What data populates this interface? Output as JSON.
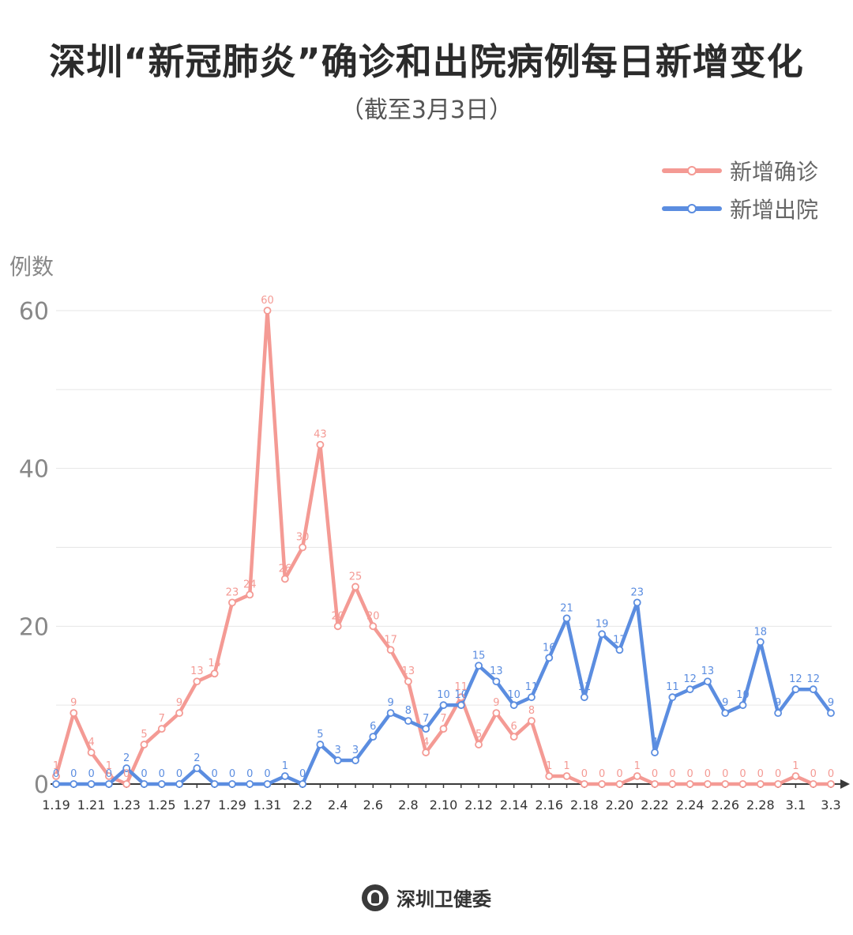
{
  "title": "深圳“新冠肺炎”确诊和出院病例每日新增变化",
  "subtitle": "（截至3月3日）",
  "footer": "深圳卫健委",
  "colors": {
    "confirmed": "#F49A94",
    "discharged": "#5B8DE0",
    "grid": "#e6e6e6",
    "axis": "#3a3a3a"
  },
  "chart_data": {
    "type": "line",
    "ylabel": "例数",
    "ylim": [
      0,
      60
    ],
    "yticks": [
      0,
      20,
      40,
      60
    ],
    "x": [
      "1.19",
      "1.20",
      "1.21",
      "1.22",
      "1.23",
      "1.24",
      "1.25",
      "1.26",
      "1.27",
      "1.28",
      "1.29",
      "1.30",
      "1.31",
      "2.1",
      "2.2",
      "2.3",
      "2.4",
      "2.5",
      "2.6",
      "2.7",
      "2.8",
      "2.9",
      "2.10",
      "2.11",
      "2.12",
      "2.13",
      "2.14",
      "2.15",
      "2.16",
      "2.17",
      "2.18",
      "2.19",
      "2.20",
      "2.21",
      "2.22",
      "2.23",
      "2.24",
      "2.25",
      "2.26",
      "2.27",
      "2.28",
      "2.29",
      "3.1",
      "3.2",
      "3.3"
    ],
    "xtick_labels": [
      "1.19",
      "1.21",
      "1.23",
      "1.25",
      "1.27",
      "1.29",
      "1.31",
      "2.2",
      "2.4",
      "2.6",
      "2.8",
      "2.10",
      "2.12",
      "2.14",
      "2.16",
      "2.18",
      "2.20",
      "2.22",
      "2.24",
      "2.26",
      "2.28",
      "3.1",
      "3.3"
    ],
    "legend_position": "top-right",
    "series": [
      {
        "name": "新增确诊",
        "values": [
          1,
          9,
          4,
          1,
          0,
          5,
          7,
          9,
          13,
          14,
          23,
          24,
          60,
          26,
          30,
          43,
          20,
          25,
          20,
          17,
          13,
          4,
          7,
          11,
          5,
          9,
          6,
          8,
          1,
          1,
          0,
          0,
          0,
          1,
          0,
          0,
          0,
          0,
          0,
          0,
          0,
          0,
          1,
          0,
          0
        ]
      },
      {
        "name": "新增出院",
        "values": [
          0,
          0,
          0,
          0,
          2,
          0,
          0,
          0,
          2,
          0,
          0,
          0,
          0,
          1,
          0,
          5,
          3,
          3,
          6,
          9,
          8,
          7,
          10,
          10,
          15,
          13,
          10,
          11,
          16,
          21,
          11,
          19,
          17,
          23,
          4,
          11,
          12,
          13,
          9,
          10,
          18,
          9,
          12,
          12,
          9
        ]
      }
    ]
  }
}
